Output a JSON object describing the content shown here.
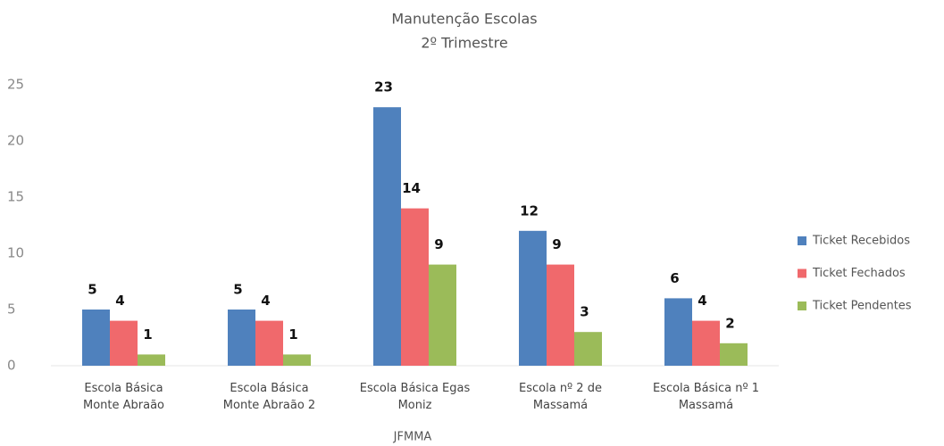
{
  "chart_data": {
    "type": "bar",
    "title": "Manutenção Escolas",
    "subtitle": "2º Trimestre",
    "x_label": "JFMMA",
    "categories": [
      "Escola Básica\nMonte Abraão",
      "Escola Básica\nMonte Abraão 2",
      "Escola Básica Egas\nMoniz",
      "Escola nº 2 de\nMassamá",
      "Escola Básica nº 1\nMassamá"
    ],
    "series": [
      {
        "name": "Ticket Recebidos",
        "color": "#4f81bd",
        "values": [
          5,
          5,
          23,
          12,
          6
        ]
      },
      {
        "name": "Ticket Fechados",
        "color": "#f0696c",
        "values": [
          4,
          4,
          14,
          9,
          4
        ]
      },
      {
        "name": "Ticket Pendentes",
        "color": "#9bbb59",
        "values": [
          1,
          1,
          9,
          3,
          2
        ]
      }
    ],
    "ylim": [
      0,
      25
    ],
    "yticks": [
      0,
      5,
      10,
      15,
      20,
      25
    ],
    "grid": false,
    "legend": "right"
  }
}
